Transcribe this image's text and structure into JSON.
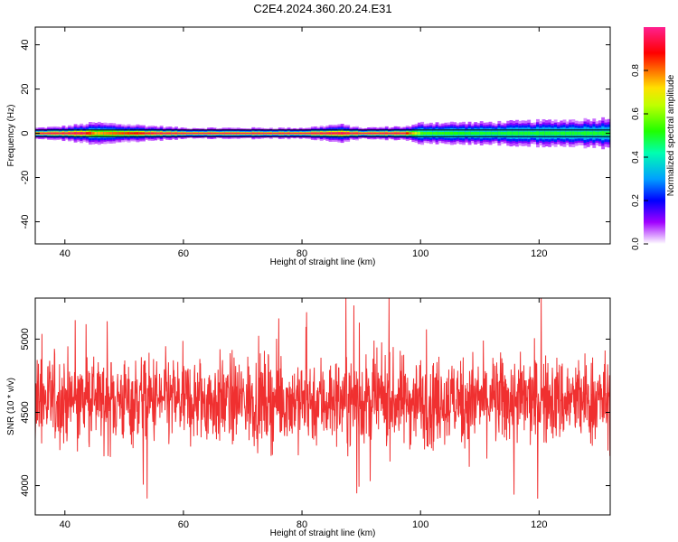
{
  "title": "C2E4.2024.360.20.24.E31",
  "colors": {
    "snr_line": "#f03030",
    "frame": "#000000",
    "spectral_line": "#000000"
  },
  "chart_data": [
    {
      "type": "heatmap",
      "xlabel": "Height of straight line (km)",
      "ylabel": "Frequency (Hz)",
      "xlim": [
        35,
        132
      ],
      "ylim": [
        -50,
        48
      ],
      "x_ticks": [
        40,
        60,
        80,
        100,
        120
      ],
      "y_ticks": [
        40,
        20,
        0,
        -20,
        -40
      ],
      "x_tick_labels": [
        "40",
        "60",
        "80",
        "100",
        "120"
      ],
      "y_tick_labels": [
        "40",
        "20",
        "0",
        "-20",
        "-40"
      ],
      "colorbar": {
        "label": "Normalized spectral amplitude",
        "range": [
          0,
          1
        ],
        "ticks": [
          0.0,
          0.2,
          0.4,
          0.6,
          0.8
        ],
        "tick_labels": [
          "0.0",
          "0.2",
          "0.4",
          "0.6",
          "0.8"
        ]
      },
      "band": {
        "center_hz": 0,
        "core_half_width_hz": [
          [
            35,
            1.5
          ],
          [
            40,
            2
          ],
          [
            45,
            3
          ],
          [
            50,
            2.5
          ],
          [
            55,
            2
          ],
          [
            60,
            1.5
          ],
          [
            70,
            1.5
          ],
          [
            80,
            1.5
          ],
          [
            86,
            2.5
          ],
          [
            90,
            1.5
          ],
          [
            98,
            2
          ],
          [
            100,
            3
          ],
          [
            105,
            3
          ],
          [
            110,
            3
          ],
          [
            120,
            3.5
          ],
          [
            130,
            4
          ],
          [
            132,
            4.5
          ]
        ],
        "peak_amplitude": [
          [
            35,
            0.95
          ],
          [
            43,
            0.95
          ],
          [
            45,
            0.75
          ],
          [
            55,
            0.95
          ],
          [
            97,
            0.95
          ],
          [
            100,
            0.55
          ],
          [
            110,
            0.5
          ],
          [
            120,
            0.5
          ],
          [
            130,
            0.5
          ],
          [
            132,
            0.5
          ]
        ]
      },
      "reference_lines_hz": [
        1.5,
        -1.5
      ]
    },
    {
      "type": "line",
      "xlabel": "Height of straight line (km)",
      "ylabel": "SNR (10 * v/v)",
      "xlim": [
        35,
        132
      ],
      "ylim": [
        3800,
        5280
      ],
      "x_ticks": [
        40,
        60,
        80,
        100,
        120
      ],
      "y_ticks": [
        4000,
        4500,
        5000
      ],
      "x_tick_labels": [
        "40",
        "60",
        "80",
        "100",
        "120"
      ],
      "y_tick_labels": [
        "4000",
        "4500",
        "5000"
      ],
      "mean": 4580,
      "noise": {
        "samples": 1800,
        "std": 150,
        "min": 3800,
        "max": 5280
      }
    }
  ]
}
